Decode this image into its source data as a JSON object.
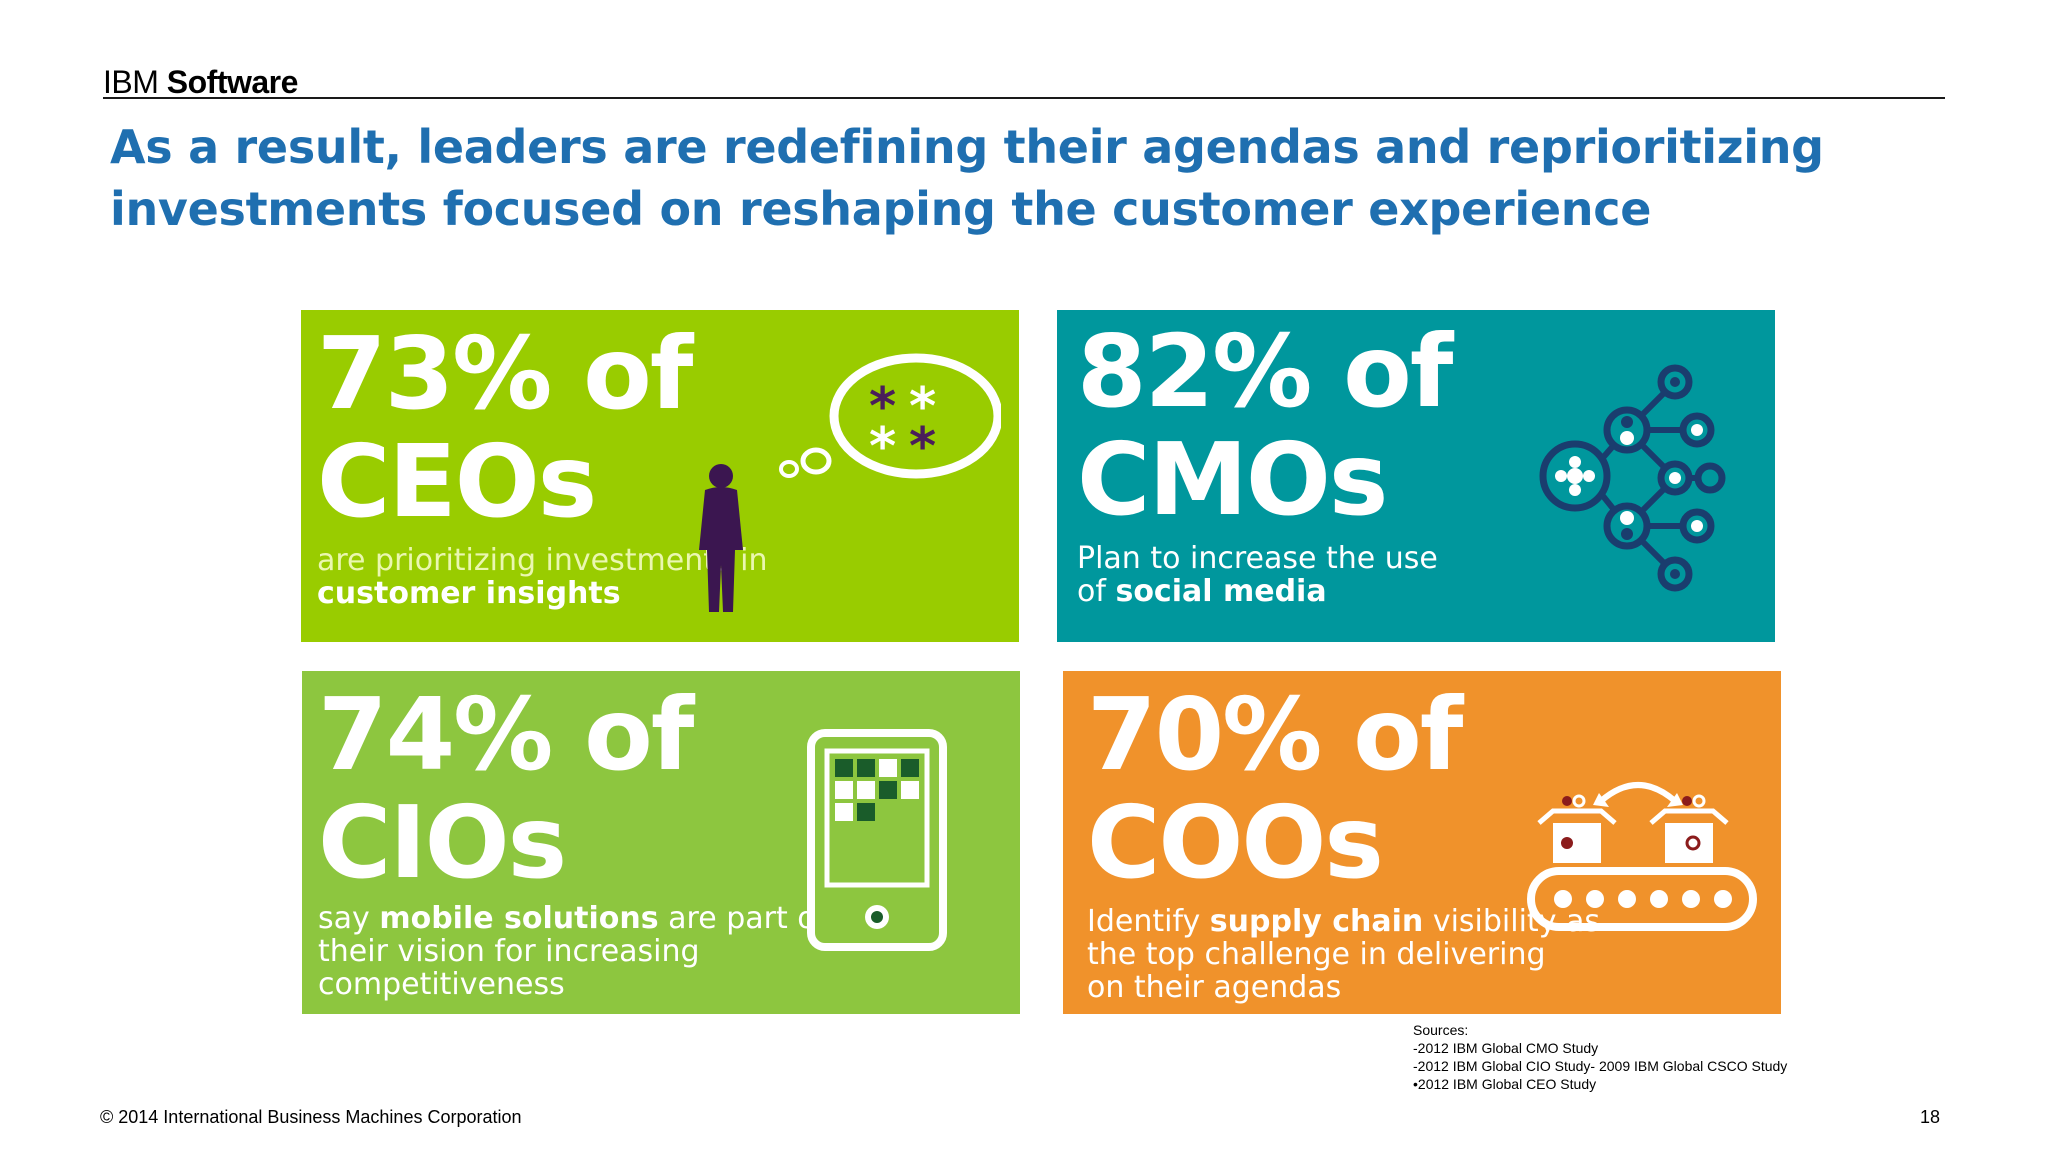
{
  "header": {
    "brand_ibm": "IBM",
    "brand_software": "Software",
    "headline_line1": "As a result, leaders are redefining their agendas and reprioritizing",
    "headline_line2": "investments focused on reshaping the customer experience"
  },
  "tiles": [
    {
      "stat": "73% of",
      "role": "CEOs",
      "desc_pre": "are prioritizing investments in",
      "desc_bold": "customer insights",
      "color": "#99cc00",
      "icon": "thinking-person-icon"
    },
    {
      "stat": "82% of",
      "role": "CMOs",
      "desc_line1": "Plan to increase the use",
      "desc_pre": "of",
      "desc_bold": "social media",
      "color": "#00979d",
      "icon": "social-network-icon"
    },
    {
      "stat": "74% of",
      "role": "CIOs",
      "desc_pre": "say",
      "desc_bold": "mobile solutions",
      "desc_post": "are part of",
      "desc_line2": "their vision for increasing",
      "desc_line3": "competitiveness",
      "color": "#8dc63f",
      "icon": "mobile-device-icon"
    },
    {
      "stat": "70% of",
      "role": "COOs",
      "desc_pre": "Identify",
      "desc_bold": "supply chain",
      "desc_post": "visibility as",
      "desc_line2": "the top challenge in delivering",
      "desc_line3": "on their agendas",
      "color": "#f0922b",
      "icon": "conveyor-belt-icon"
    }
  ],
  "sources": {
    "title": "Sources:",
    "items": [
      "-2012 IBM Global CMO Study",
      "-2012 IBM Global CIO Study- 2009 IBM Global CSCO Study",
      "•2012 IBM Global CEO Study"
    ]
  },
  "footer": {
    "copyright": "© 2014 International Business Machines Corporation",
    "page": "18"
  }
}
